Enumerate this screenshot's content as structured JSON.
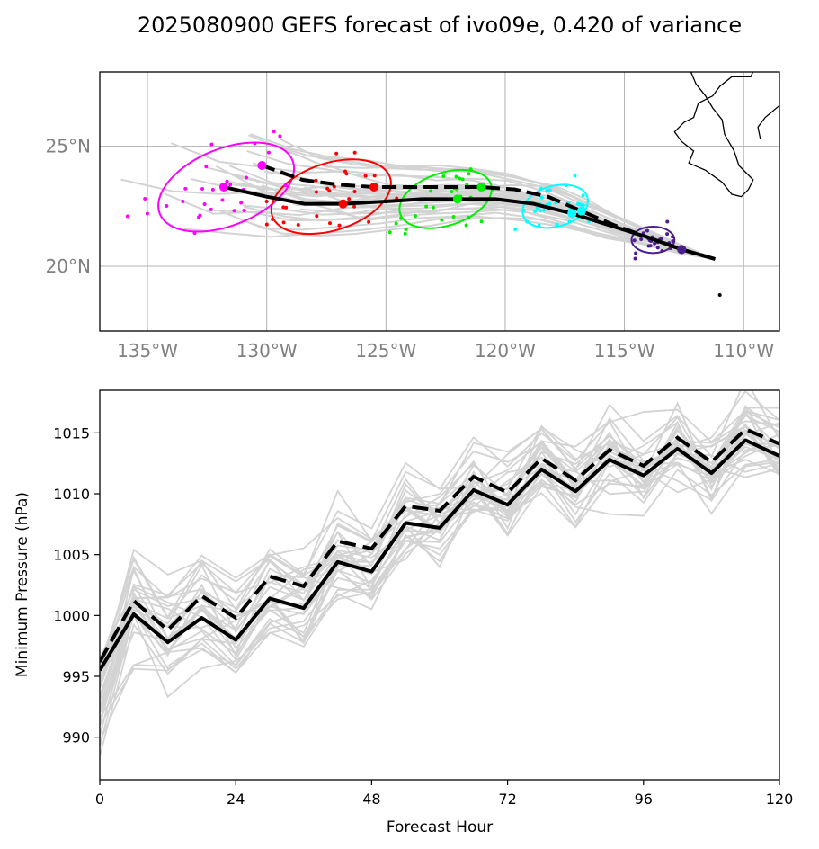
{
  "figure_title": "2025080900 GEFS forecast of ivo09e, 0.420 of variance",
  "chart_data": [
    {
      "type": "scatter",
      "subtype": "track-map",
      "xlim": [
        -137.0,
        -108.5
      ],
      "ylim": [
        17.3,
        28.1
      ],
      "grid": true,
      "xticks": [
        {
          "value": -135,
          "label": "135°W"
        },
        {
          "value": -130,
          "label": "130°W"
        },
        {
          "value": -125,
          "label": "125°W"
        },
        {
          "value": -120,
          "label": "120°W"
        },
        {
          "value": -115,
          "label": "115°W"
        },
        {
          "value": -110,
          "label": "110°W"
        }
      ],
      "yticks": [
        {
          "value": 20,
          "label": "20°N"
        },
        {
          "value": 25,
          "label": "25°N"
        }
      ],
      "mean_track_solid": [
        [
          -111.2,
          20.3
        ],
        [
          -112.6,
          20.7
        ],
        [
          -114.0,
          21.2
        ],
        [
          -115.6,
          21.7
        ],
        [
          -117.2,
          22.2
        ],
        [
          -118.8,
          22.6
        ],
        [
          -120.4,
          22.8
        ],
        [
          -122.0,
          22.8
        ],
        [
          -123.5,
          22.8
        ],
        [
          -125.0,
          22.7
        ],
        [
          -126.8,
          22.6
        ],
        [
          -128.4,
          22.6
        ],
        [
          -130.0,
          22.9
        ],
        [
          -131.8,
          23.3
        ]
      ],
      "mean_track_dashed": [
        [
          -111.2,
          20.3
        ],
        [
          -112.6,
          20.7
        ],
        [
          -114.0,
          21.2
        ],
        [
          -115.4,
          21.7
        ],
        [
          -116.8,
          22.3
        ],
        [
          -118.2,
          22.9
        ],
        [
          -119.6,
          23.2
        ],
        [
          -121.0,
          23.3
        ],
        [
          -122.5,
          23.3
        ],
        [
          -124.0,
          23.3
        ],
        [
          -125.5,
          23.3
        ],
        [
          -127.0,
          23.4
        ],
        [
          -128.5,
          23.6
        ],
        [
          -130.2,
          24.2
        ]
      ],
      "clusters": [
        {
          "color": "#ff00ff",
          "center": [
            -131.7,
            23.3
          ],
          "rx_deg": 3.0,
          "ry_deg": 1.6,
          "angle": -22
        },
        {
          "color": "#ff0000",
          "center": [
            -127.3,
            22.9
          ],
          "rx_deg": 2.6,
          "ry_deg": 1.4,
          "angle": -18
        },
        {
          "color": "#00ee00",
          "center": [
            -122.5,
            22.8
          ],
          "rx_deg": 2.0,
          "ry_deg": 1.1,
          "angle": -18
        },
        {
          "color": "#00ffff",
          "center": [
            -117.9,
            22.5
          ],
          "rx_deg": 1.4,
          "ry_deg": 0.85,
          "angle": -15
        },
        {
          "color": "#4b1f8c",
          "center": [
            -113.8,
            21.1
          ],
          "rx_deg": 0.9,
          "ry_deg": 0.55,
          "angle": 0
        }
      ]
    },
    {
      "type": "line",
      "xlabel": "Forecast Hour",
      "ylabel": "Minimum Pressure (hPa)",
      "xlim": [
        0,
        120
      ],
      "ylim": [
        986.5,
        1018.5
      ],
      "xticks": [
        0,
        24,
        48,
        72,
        96,
        120
      ],
      "yticks": [
        990,
        995,
        1000,
        1005,
        1010,
        1015
      ],
      "x": [
        0,
        6,
        12,
        18,
        24,
        30,
        36,
        42,
        48,
        54,
        60,
        66,
        72,
        78,
        84,
        90,
        96,
        102,
        108,
        114,
        120
      ],
      "mean_solid": [
        995.5,
        1000.1,
        997.8,
        999.8,
        998.0,
        1001.4,
        1000.6,
        1004.4,
        1003.6,
        1007.6,
        1007.2,
        1010.3,
        1009.1,
        1012.0,
        1010.2,
        1012.8,
        1011.5,
        1013.7,
        1011.7,
        1014.4,
        1013.1
      ],
      "mean_dashed": [
        996.2,
        1001.2,
        998.8,
        1001.6,
        999.8,
        1003.2,
        1002.4,
        1006.1,
        1005.5,
        1009.0,
        1008.6,
        1011.4,
        1010.1,
        1012.9,
        1011.1,
        1013.6,
        1012.3,
        1014.6,
        1012.6,
        1015.3,
        1014.1
      ]
    }
  ]
}
